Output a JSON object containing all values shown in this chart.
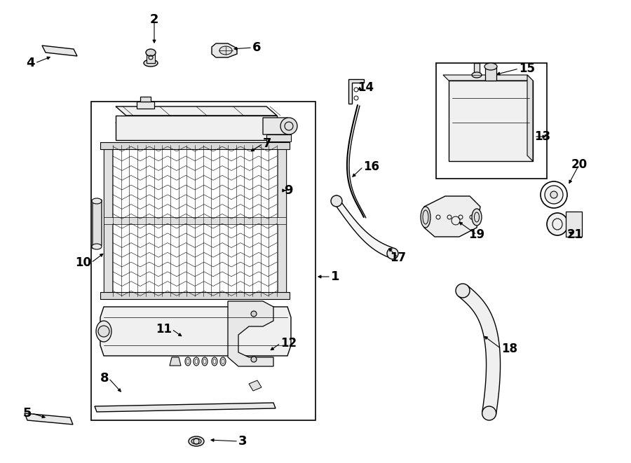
{
  "bg": "#ffffff",
  "lc": "#000000",
  "fig_w": 9.0,
  "fig_h": 6.61,
  "dpi": 100
}
